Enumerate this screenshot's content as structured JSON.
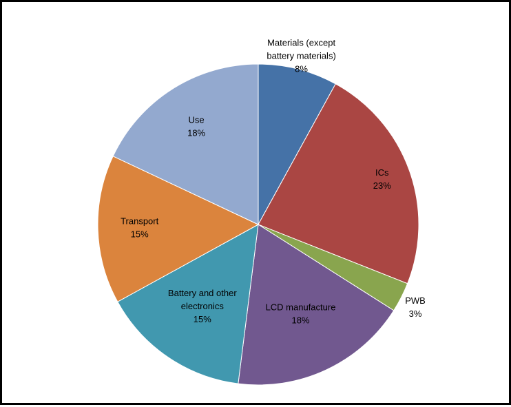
{
  "chart_data": {
    "type": "pie",
    "title": "",
    "slices": [
      {
        "label_lines": [
          "Materials (except",
          "battery materials)"
        ],
        "percent_label": "8%",
        "value": 8,
        "color": "#4572A7"
      },
      {
        "label_lines": [
          "ICs"
        ],
        "percent_label": "23%",
        "value": 23,
        "color": "#AA4643"
      },
      {
        "label_lines": [
          "PWB"
        ],
        "percent_label": "3%",
        "value": 3,
        "color": "#89A54E"
      },
      {
        "label_lines": [
          "LCD manufacture"
        ],
        "percent_label": "18%",
        "value": 18,
        "color": "#71588F"
      },
      {
        "label_lines": [
          "Battery and other",
          "electronics"
        ],
        "percent_label": "15%",
        "value": 15,
        "color": "#4198AF"
      },
      {
        "label_lines": [
          "Transport"
        ],
        "percent_label": "15%",
        "value": 15,
        "color": "#DB843D"
      },
      {
        "label_lines": [
          "Use"
        ],
        "percent_label": "18%",
        "value": 18,
        "color": "#93A9CF"
      }
    ],
    "start_angle": "12 o'clock",
    "direction": "clockwise",
    "legend": "none"
  }
}
